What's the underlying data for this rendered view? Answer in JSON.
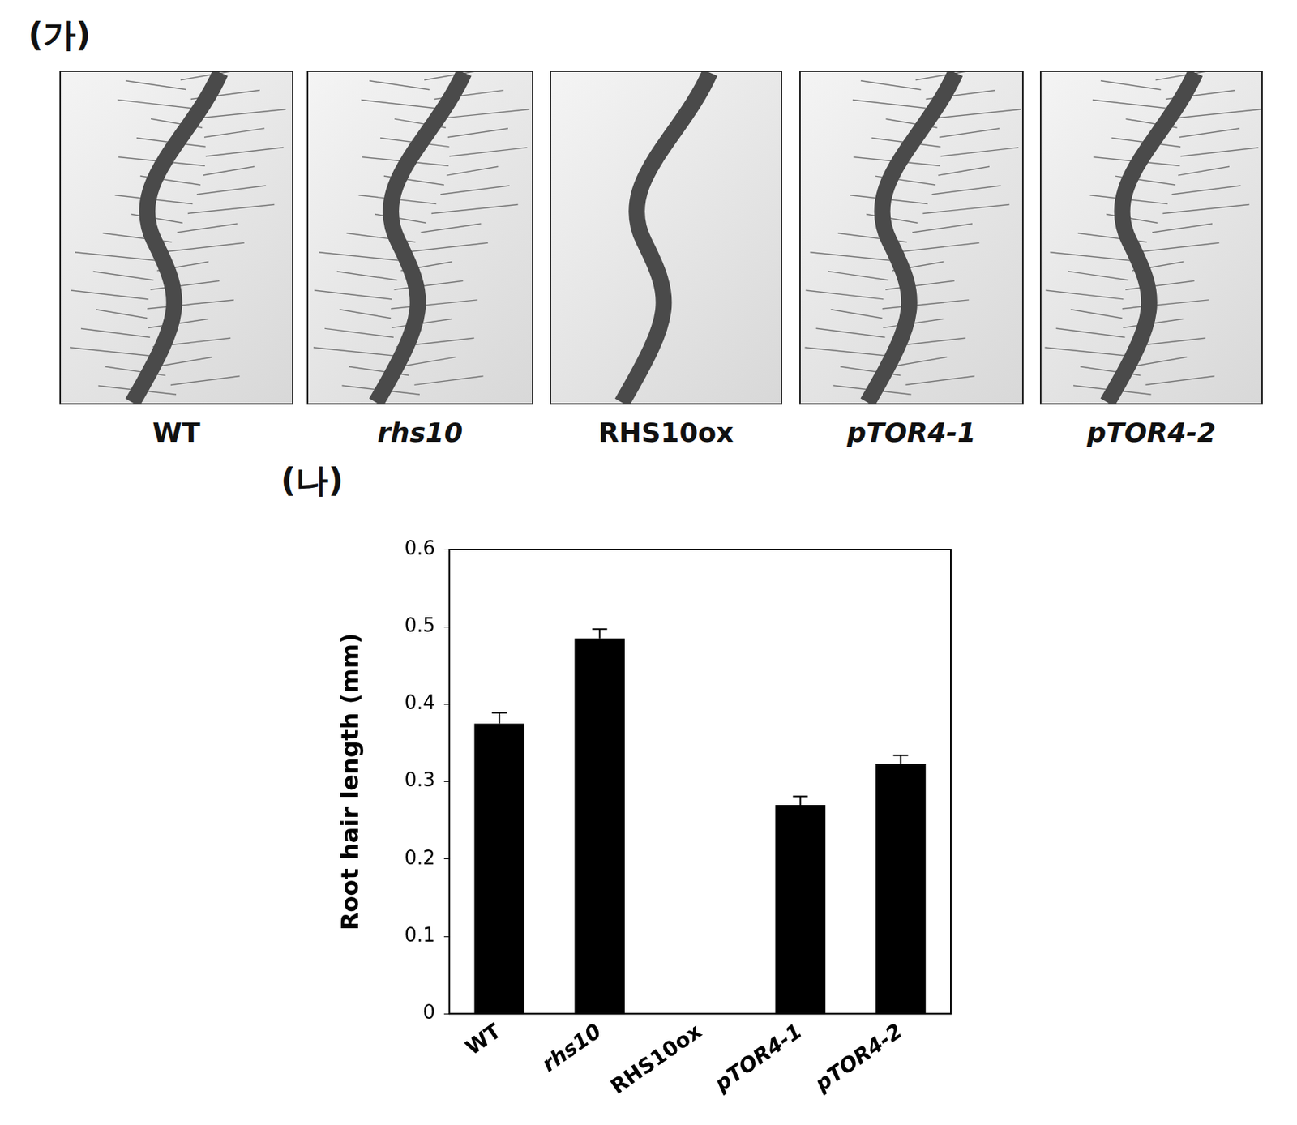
{
  "chart_data": {
    "type": "bar",
    "title": "(나)",
    "y_label": "Root hair length (mm)",
    "categories": [
      "WT",
      "rhs10",
      "RHS10ox",
      "pTOR4-1",
      "pTOR4-2"
    ],
    "values": [
      0.375,
      0.485,
      0,
      0.27,
      0.323
    ],
    "errors": [
      0.014,
      0.012,
      0,
      0.011,
      0.011
    ],
    "color": "#000000",
    "ylim": [
      0,
      0.6
    ],
    "yticks": [
      0,
      0.1,
      0.2,
      0.3,
      0.4,
      0.5,
      0.6
    ],
    "grid": false
  },
  "photo_panel": {
    "label": "(가)",
    "images": [
      "WT",
      "rhs10",
      "RHS10ox",
      "pTOR4-1",
      "pTOR4-2"
    ]
  }
}
